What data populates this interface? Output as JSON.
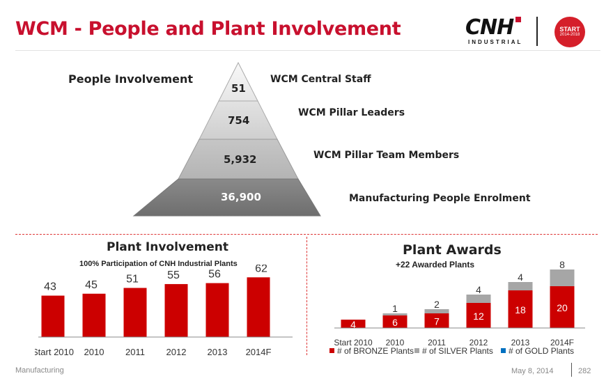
{
  "title": "WCM - People and Plant Involvement",
  "logo": {
    "name": "CNH",
    "sub": "INDUSTRIAL"
  },
  "badge": {
    "line1": "START",
    "line2": "2014-2018"
  },
  "people": {
    "heading": "People Involvement",
    "levels": [
      {
        "value": "51",
        "label": "WCM Central Staff"
      },
      {
        "value": "754",
        "label": "WCM Pillar Leaders"
      },
      {
        "value": "5,932",
        "label": "WCM Pillar Team Members"
      },
      {
        "value": "36,900",
        "label": "Manufacturing People Enrolment"
      }
    ]
  },
  "chart_data": [
    {
      "type": "bar",
      "title": "Plant Involvement",
      "subtitle": "100% Participation of CNH Industrial Plants",
      "categories": [
        "Start 2010",
        "2010",
        "2011",
        "2012",
        "2013",
        "2014F"
      ],
      "values": [
        43,
        45,
        51,
        55,
        56,
        62
      ],
      "color": "#cc0000",
      "ylim": [
        0,
        70
      ],
      "grid": false
    },
    {
      "type": "bar",
      "stacked": true,
      "title": "Plant Awards",
      "subtitle": "+22 Awarded Plants",
      "categories": [
        "Start 2010",
        "2010",
        "2011",
        "2012",
        "2013",
        "2014F"
      ],
      "series": [
        {
          "name": "# of BRONZE  Plants",
          "color": "#cc0000",
          "values": [
            4,
            6,
            7,
            12,
            18,
            20
          ]
        },
        {
          "name": "# of SILVER Plants",
          "color": "#a6a6a6",
          "values": [
            0,
            1,
            2,
            4,
            4,
            8
          ]
        },
        {
          "name": "# of GOLD  Plants",
          "color": "#0070c0",
          "values": [
            0,
            0,
            0,
            0,
            0,
            0
          ]
        }
      ],
      "silver_labels": [
        "",
        "1",
        "2",
        "4",
        "4",
        "8"
      ],
      "legend": "bottom",
      "ylim": [
        0,
        30
      ],
      "grid": false
    }
  ],
  "footer": {
    "left": "Manufacturing",
    "date": "May 8, 2014",
    "page": "282"
  }
}
